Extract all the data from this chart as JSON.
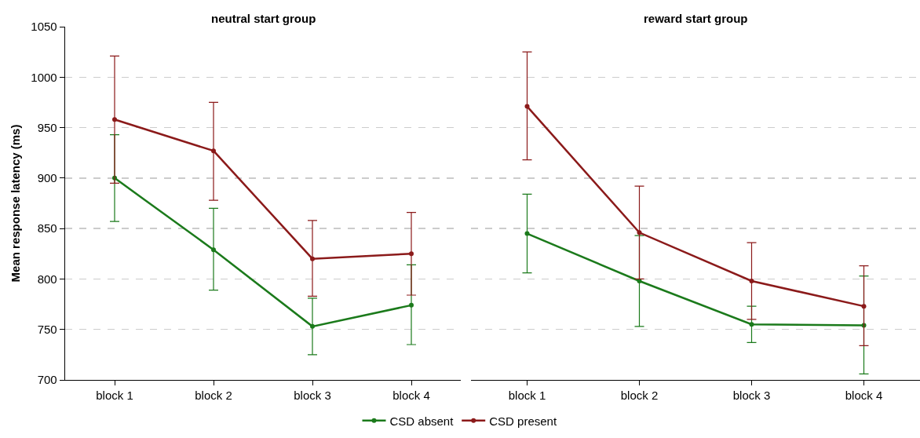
{
  "chart_data": [
    {
      "type": "line",
      "title": "neutral start group",
      "ylabel": "Mean response latency (ms)",
      "categories": [
        "block 1",
        "block 2",
        "block 3",
        "block 4"
      ],
      "ylim": [
        700,
        1050
      ],
      "yticks": [
        700,
        750,
        800,
        850,
        900,
        950,
        1000,
        1050
      ],
      "grid": "y",
      "legend": "bottom",
      "marker": "circle",
      "line_style": "solid",
      "series": [
        {
          "name": "CSD absent",
          "color": "#1b7a1b",
          "values": [
            900,
            829,
            753,
            774
          ],
          "errors": [
            [
              857,
              943
            ],
            [
              789,
              870
            ],
            [
              725,
              781
            ],
            [
              735,
              814
            ]
          ]
        },
        {
          "name": "CSD present",
          "color": "#8b1a1a",
          "values": [
            958,
            927,
            820,
            825
          ],
          "errors": [
            [
              895,
              1021
            ],
            [
              878,
              975
            ],
            [
              783,
              858
            ],
            [
              784,
              866
            ]
          ]
        }
      ]
    },
    {
      "type": "line",
      "title": "reward start group",
      "categories": [
        "block 1",
        "block 2",
        "block 3",
        "block 4"
      ],
      "ylim": [
        700,
        1050
      ],
      "yticks": [
        700,
        750,
        800,
        850,
        900,
        950,
        1000,
        1050
      ],
      "grid": "y",
      "tick_labels": "x",
      "marker": "circle",
      "line_style": "solid",
      "series": [
        {
          "color": "#1b7a1b",
          "values": [
            845,
            798,
            755,
            754
          ],
          "errors": [
            [
              806,
              884
            ],
            [
              753,
              843
            ],
            [
              737,
              773
            ],
            [
              706,
              803
            ]
          ]
        },
        {
          "color": "#8b1a1a",
          "values": [
            971,
            846,
            798,
            773
          ],
          "errors": [
            [
              918,
              1025
            ],
            [
              800,
              892
            ],
            [
              760,
              836
            ],
            [
              734,
              813
            ]
          ]
        }
      ]
    }
  ]
}
